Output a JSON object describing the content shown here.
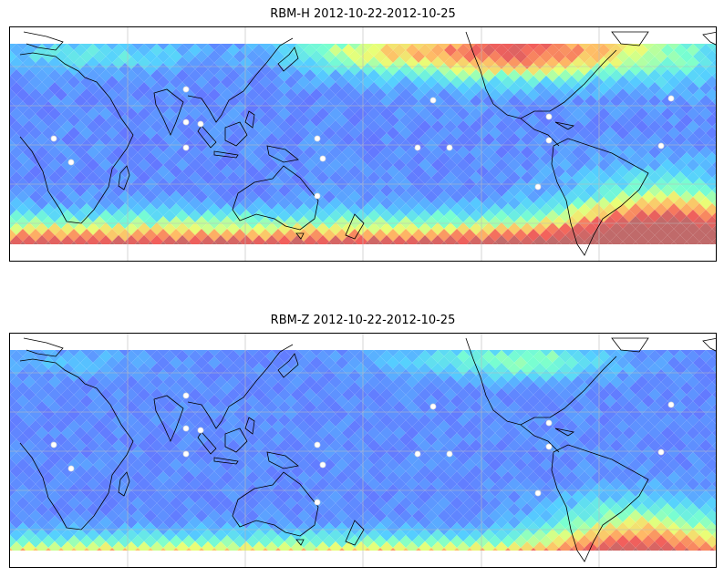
{
  "panels": [
    {
      "title": "RBM-H 2012-10-22-2012-10-25",
      "field": "H",
      "colormap": [
        "#6a5dff",
        "#5f8bff",
        "#55cfff",
        "#79ffd0",
        "#e9ff77",
        "#ffba66",
        "#f25f5c",
        "#c06a6a"
      ]
    },
    {
      "title": "RBM-Z 2012-10-22-2012-10-25",
      "field": "Z",
      "colormap": [
        "#6a5dff",
        "#5f8bff",
        "#55cfff",
        "#79ffd0",
        "#e9ff77",
        "#ffba66",
        "#f25f5c",
        "#c06a6a"
      ]
    }
  ],
  "colors": {
    "coast": "#000000",
    "grid": "#bbbbbb",
    "station": "#ffffff"
  }
}
